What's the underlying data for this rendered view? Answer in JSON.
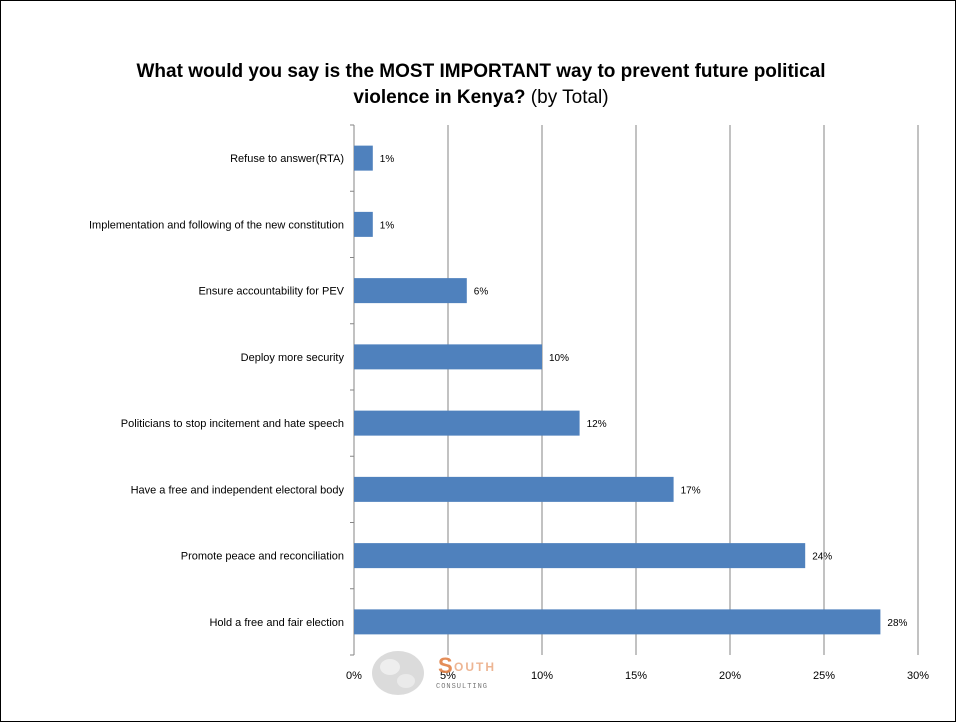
{
  "title": {
    "bold": "What would you say is the MOST IMPORTANT way to prevent future political violence in Kenya?",
    "normal": "(by Total)"
  },
  "chart_data": {
    "type": "bar",
    "orientation": "horizontal",
    "title": "What would you say is the MOST IMPORTANT way to prevent future political violence in Kenya? (by Total)",
    "categories": [
      "Refuse to answer(RTA)",
      "Implementation and following of the new constitution",
      "Ensure accountability for PEV",
      "Deploy more security",
      "Politicians to stop incitement and hate speech",
      "Have a free and independent electoral body",
      "Promote peace and reconciliation",
      "Hold a free and fair election"
    ],
    "values": [
      1,
      1,
      6,
      10,
      12,
      17,
      24,
      28
    ],
    "data_labels": [
      "1%",
      "1%",
      "6%",
      "10%",
      "12%",
      "17%",
      "24%",
      "28%"
    ],
    "xlim": [
      0,
      30
    ],
    "x_ticks": [
      0,
      5,
      10,
      15,
      20,
      25,
      30
    ],
    "x_tick_labels": [
      "0%",
      "5%",
      "10%",
      "15%",
      "20%",
      "25%",
      "30%"
    ],
    "grid": "vertical",
    "bar_color": "#4f81bd",
    "grid_color": "#868686"
  },
  "logo": {
    "brand": "SOUTH",
    "sub": "CONSULTING"
  }
}
